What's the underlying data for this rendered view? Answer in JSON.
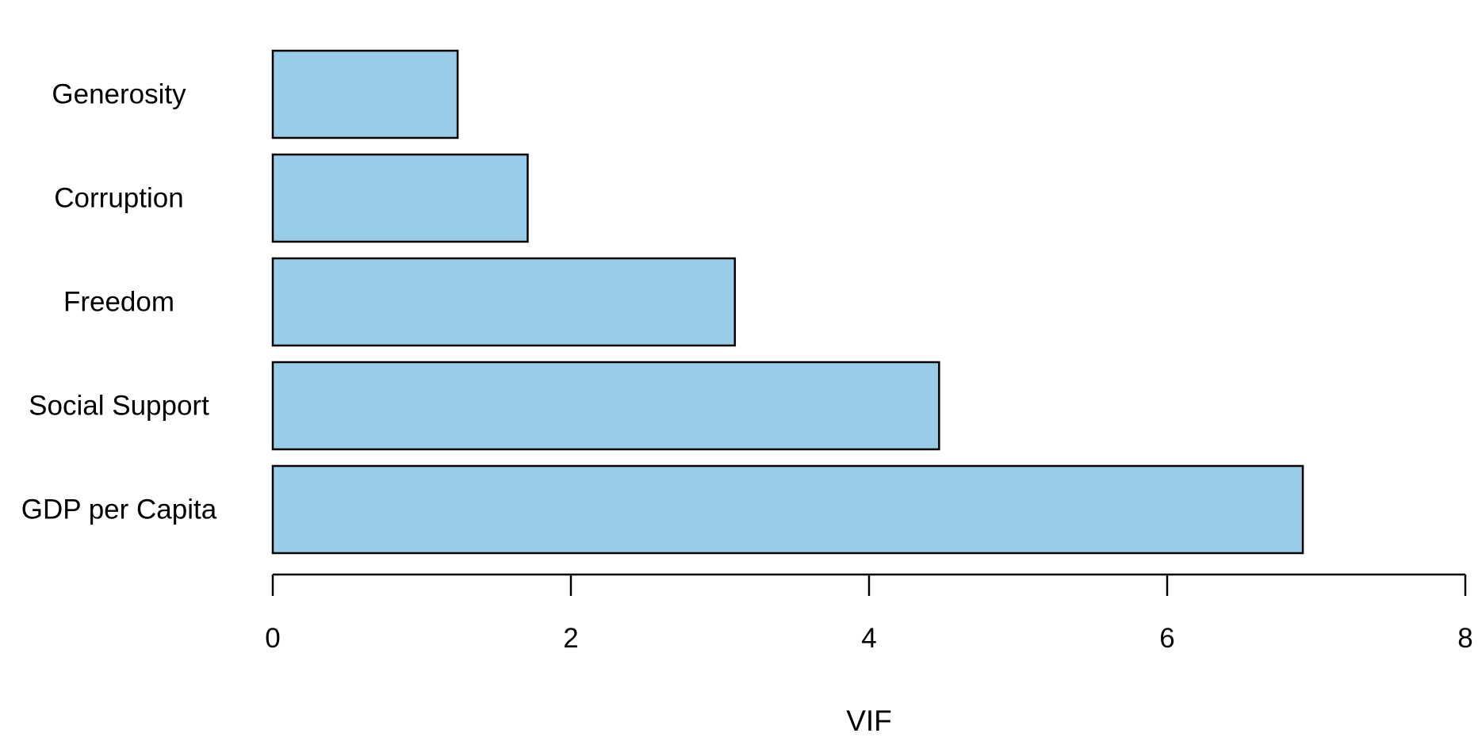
{
  "chart_data": {
    "type": "bar",
    "orientation": "horizontal",
    "categories": [
      "Generosity",
      "Corruption",
      "Freedom",
      "Social Support",
      "GDP per Capita"
    ],
    "values": [
      1.24,
      1.71,
      3.1,
      4.47,
      6.91
    ],
    "title": "",
    "xlabel": "VIF",
    "ylabel": "",
    "xlim": [
      0,
      8
    ],
    "x_ticks": [
      "0",
      "2",
      "4",
      "6",
      "8"
    ],
    "grid": false,
    "legend": "none",
    "bar_color": "#98cce8",
    "bar_edge_color": "#000000"
  }
}
